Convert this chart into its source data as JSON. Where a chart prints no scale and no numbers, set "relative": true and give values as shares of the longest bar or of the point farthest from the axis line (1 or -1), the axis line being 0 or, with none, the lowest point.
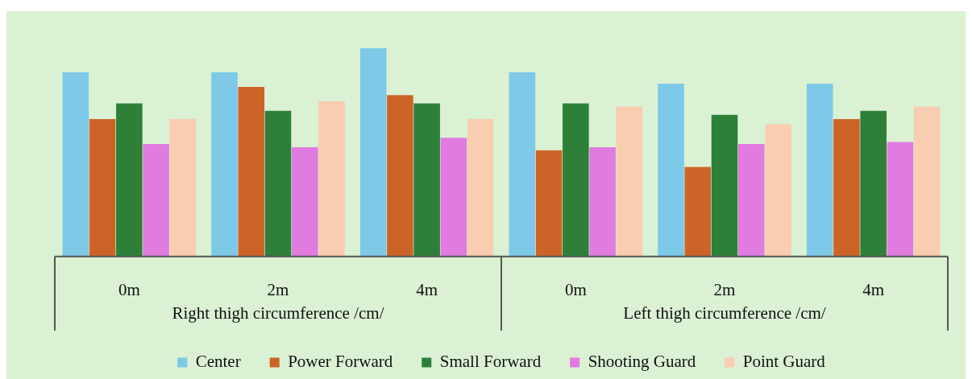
{
  "chart_data": {
    "type": "bar",
    "relative": true,
    "categories": [
      "0m",
      "2m",
      "4m",
      "0m",
      "2m",
      "4m"
    ],
    "annotations": [
      "Right thigh circumference /cm/",
      "Left thigh circumference /cm/"
    ],
    "series": [
      {
        "name": "Center",
        "color": "#7ec8e8",
        "values": [
          0.885,
          0.885,
          1,
          0.885,
          0.83,
          0.83
        ]
      },
      {
        "name": "Power Forward",
        "color": "#cc6428",
        "values": [
          0.66,
          0.815,
          0.775,
          0.51,
          0.43,
          0.66
        ]
      },
      {
        "name": "Small Forward",
        "color": "#2e8038",
        "values": [
          0.735,
          0.7,
          0.735,
          0.735,
          0.68,
          0.7
        ]
      },
      {
        "name": "Shooting Guard",
        "color": "#e07be0",
        "values": [
          0.54,
          0.525,
          0.57,
          0.525,
          0.54,
          0.55
        ]
      },
      {
        "name": "Point Guard",
        "color": "#f8cdb0",
        "values": [
          0.66,
          0.745,
          0.66,
          0.72,
          0.635,
          0.72
        ]
      }
    ],
    "grid": false,
    "legend": "bottom"
  }
}
